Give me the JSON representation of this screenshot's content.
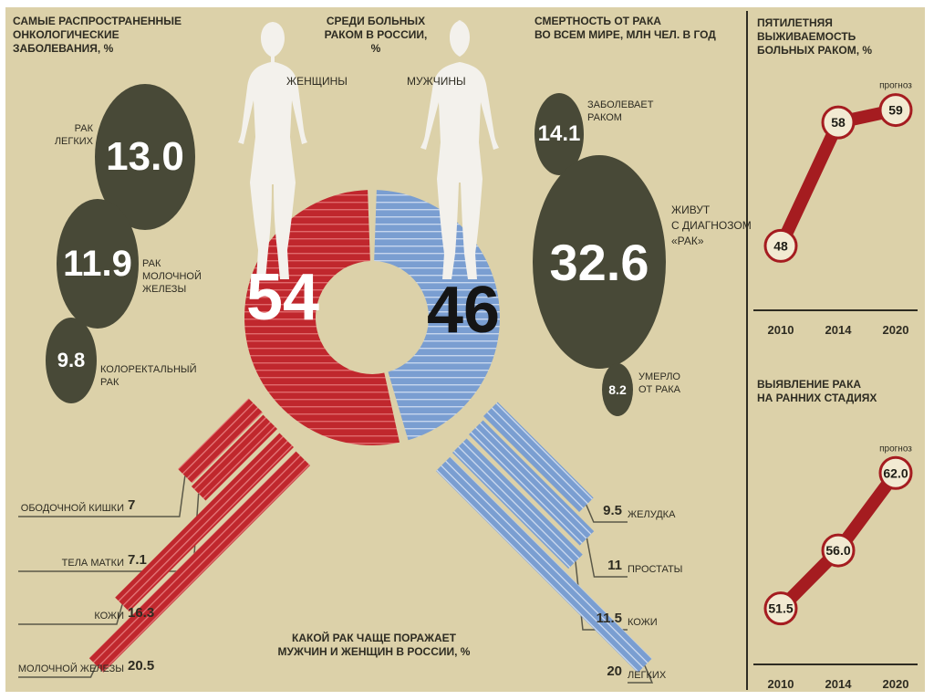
{
  "colors": {
    "background": "#dcd1a9",
    "women_red": "#c0272d",
    "men_blue": "#7a9ed1",
    "bubble_dark": "#484937",
    "line_red": "#a51c20"
  },
  "left": {
    "header": [
      "САМЫЕ РАСПРОСТРАНЕННЫЕ",
      "ОНКОЛОГИЧЕСКИЕ",
      "ЗАБОЛЕВАНИЯ, %"
    ],
    "items": [
      {
        "value": "13.0",
        "label": [
          "РАК",
          "ЛЕГКИХ"
        ]
      },
      {
        "value": "11.9",
        "label": [
          "РАК",
          "МОЛОЧНОЙ",
          "ЖЕЛЕЗЫ"
        ]
      },
      {
        "value": "9.8",
        "label": [
          "КОЛОРЕКТАЛЬНЫЙ",
          "РАК"
        ]
      }
    ]
  },
  "center": {
    "header": [
      "СРЕДИ БОЛЬНЫХ",
      "РАКОМ В РОССИИ, %"
    ],
    "women_label": "ЖЕНЩИНЫ",
    "men_label": "МУЖЧИНЫ",
    "women_value": "54",
    "men_value": "46",
    "bottom_title": [
      "КАКОЙ РАК ЧАЩЕ ПОРАЖАЕТ",
      "МУЖЧИН И ЖЕНЩИН В РОССИИ, %"
    ]
  },
  "mortality": {
    "header": [
      "СМЕРТНОСТЬ ОТ РАКА",
      "ВО ВСЕМ МИРЕ, МЛН ЧЕЛ. В ГОД"
    ],
    "items": [
      {
        "value": "14.1",
        "label": [
          "ЗАБОЛЕВАЕТ",
          "РАКОМ"
        ]
      },
      {
        "value": "32.6",
        "label": [
          "ЖИВУТ",
          "С ДИАГНОЗОМ",
          "«РАК»"
        ]
      },
      {
        "value": "8.2",
        "label": [
          "УМЕРЛО",
          "ОТ РАКА"
        ]
      }
    ]
  },
  "survival": {
    "header": [
      "ПЯТИЛЕТНЯЯ ВЫЖИВАЕМОСТЬ",
      "БОЛЬНЫХ РАКОМ, %"
    ],
    "forecast_label": "прогноз"
  },
  "early": {
    "header": [
      "ВЫЯВЛЕНИЕ РАКА",
      "НА РАННИХ СТАДИЯХ"
    ],
    "forecast_label": "прогноз"
  },
  "chart_data": [
    {
      "type": "pie",
      "title": "СРЕДИ БОЛЬНЫХ РАКОМ В РОССИИ, %",
      "categories": [
        "ЖЕНЩИНЫ",
        "МУЖЧИНЫ"
      ],
      "values": [
        54,
        46
      ]
    },
    {
      "type": "bar",
      "title": "КАКОЙ РАК ЧАЩЕ ПОРАЖАЕТ МУЖЧИН И ЖЕНЩИН В РОССИИ, %",
      "series": [
        {
          "name": "ЖЕНЩИНЫ",
          "categories": [
            "ОБОДОЧНОЙ КИШКИ",
            "ТЕЛА МАТКИ",
            "КОЖИ",
            "МОЛОЧНОЙ ЖЕЛЕЗЫ"
          ],
          "values": [
            7,
            7.1,
            16.3,
            20.5
          ],
          "labels": [
            "7",
            "7.1",
            "16.3",
            "20.5"
          ]
        },
        {
          "name": "МУЖЧИНЫ",
          "categories": [
            "ЖЕЛУДКА",
            "ПРОСТАТЫ",
            "КОЖИ",
            "ЛЕГКИХ"
          ],
          "values": [
            9.5,
            11,
            11.5,
            20
          ],
          "labels": [
            "9.5",
            "11",
            "11.5",
            "20"
          ]
        }
      ]
    },
    {
      "type": "line",
      "title": "ПЯТИЛЕТНЯЯ ВЫЖИВАЕМОСТЬ БОЛЬНЫХ РАКОМ, %",
      "x": [
        "2010",
        "2014",
        "2020"
      ],
      "values": [
        48,
        58,
        59
      ],
      "labels": [
        "48",
        "58",
        "59"
      ],
      "forecast": "2020",
      "ylim": [
        45,
        62
      ]
    },
    {
      "type": "line",
      "title": "ВЫЯВЛЕНИЕ РАКА НА РАННИХ СТАДИЯХ",
      "x": [
        "2010",
        "2014",
        "2020"
      ],
      "values": [
        51.5,
        56.0,
        62.0
      ],
      "labels": [
        "51.5",
        "56.0",
        "62.0"
      ],
      "forecast": "2020",
      "ylim": [
        49,
        64
      ]
    }
  ]
}
